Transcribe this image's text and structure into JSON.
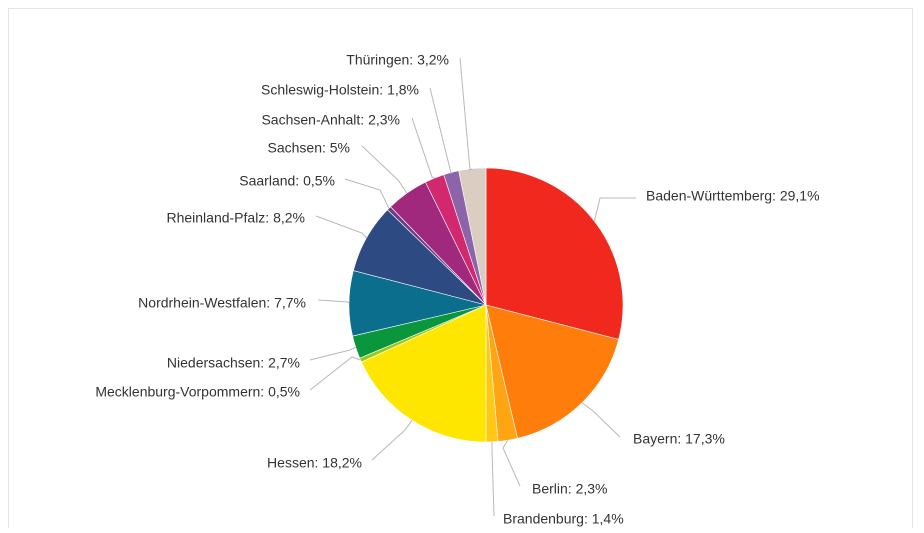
{
  "chart_data": {
    "type": "pie",
    "title": "",
    "start_angle_deg": 0,
    "direction": "clockwise",
    "slices": [
      {
        "name": "Baden-Württemberg",
        "value": 29.1,
        "label": "Baden-Württemberg: 29,1%",
        "color": "#f0281e"
      },
      {
        "name": "Bayern",
        "value": 17.3,
        "label": "Bayern: 17,3%",
        "color": "#ff7d0a"
      },
      {
        "name": "Berlin",
        "value": 2.3,
        "label": "Berlin: 2,3%",
        "color": "#ffa514"
      },
      {
        "name": "Brandenburg",
        "value": 1.4,
        "label": "Brandenburg: 1,4%",
        "color": "#ffc814"
      },
      {
        "name": "Hessen",
        "value": 18.2,
        "label": "Hessen: 18,2%",
        "color": "#ffe600"
      },
      {
        "name": "Mecklenburg-Vorpommern",
        "value": 0.5,
        "label": "Mecklenburg-Vorpommern: 0,5%",
        "color": "#96c81e"
      },
      {
        "name": "Niedersachsen",
        "value": 2.7,
        "label": "Niedersachsen: 2,7%",
        "color": "#0a963c"
      },
      {
        "name": "Nordrhein-Westfalen",
        "value": 7.7,
        "label": "Nordrhein-Westfalen: 7,7%",
        "color": "#0a6e8c"
      },
      {
        "name": "Rheinland-Pfalz",
        "value": 8.2,
        "label": "Rheinland-Pfalz: 8,2%",
        "color": "#2d4b82"
      },
      {
        "name": "Saarland",
        "value": 0.5,
        "label": "Saarland: 0,5%",
        "color": "#6e3c82"
      },
      {
        "name": "Sachsen",
        "value": 5,
        "label": "Sachsen: 5%",
        "color": "#a0287d"
      },
      {
        "name": "Sachsen-Anhalt",
        "value": 2.3,
        "label": "Sachsen-Anhalt: 2,3%",
        "color": "#d2286e"
      },
      {
        "name": "Schleswig-Holstein",
        "value": 1.8,
        "label": "Schleswig-Holstein: 1,8%",
        "color": "#8c64aa"
      },
      {
        "name": "Thüringen",
        "value": 3.2,
        "label": "Thüringen: 3,2%",
        "color": "#dccdc3"
      }
    ]
  }
}
